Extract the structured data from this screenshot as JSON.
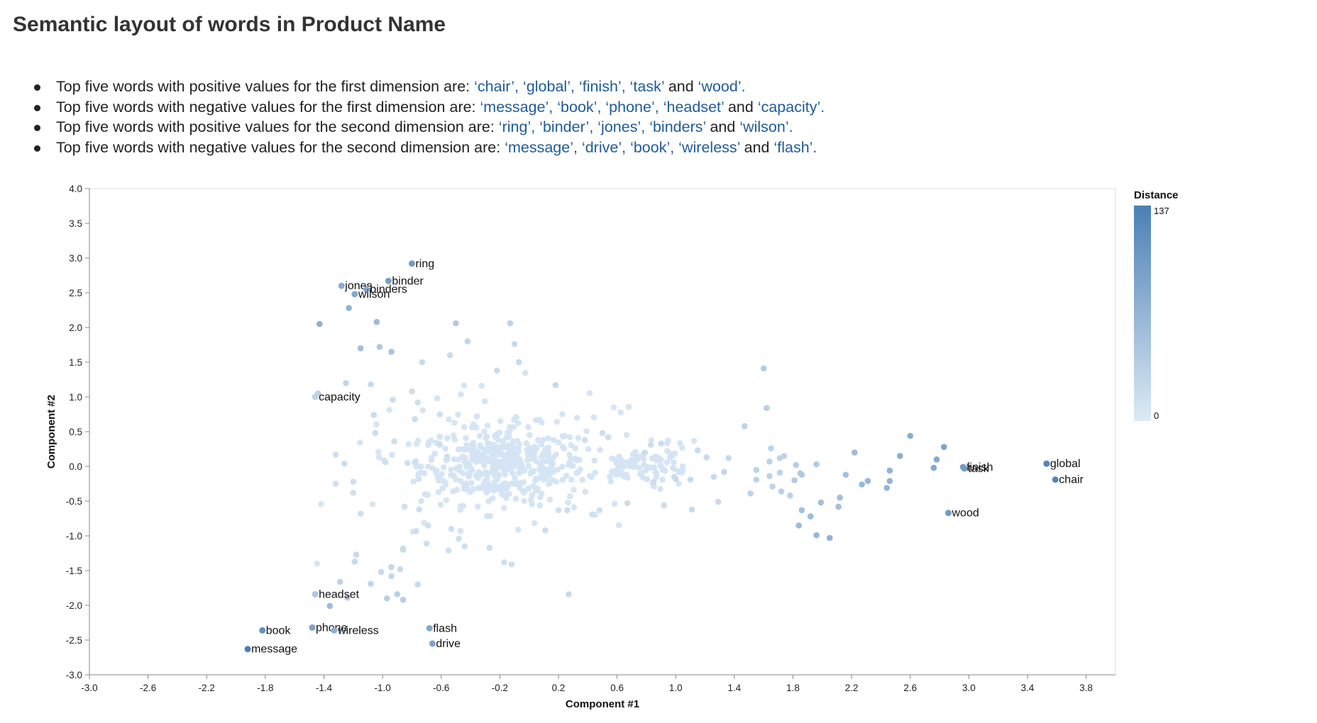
{
  "page": {
    "title": "Semantic layout of words in Product Name"
  },
  "summary": [
    {
      "prefix": "Top five words with positive values for the first dimension are: ",
      "words": [
        "chair",
        "global",
        "finish",
        "task",
        "wood"
      ]
    },
    {
      "prefix": "Top five words with negative values for the first dimension are: ",
      "words": [
        "message",
        "book",
        "phone",
        "headset",
        "capacity"
      ]
    },
    {
      "prefix": "Top five words with positive values for the second dimension are: ",
      "words": [
        "ring",
        "binder",
        "jones",
        "binders",
        "wilson"
      ]
    },
    {
      "prefix": "Top five words with negative values for the second dimension are: ",
      "words": [
        "message",
        "drive",
        "book",
        "wireless",
        "flash"
      ]
    }
  ],
  "summary_conjunction": "and",
  "chart_data": {
    "type": "scatter",
    "xlabel": "Component #1",
    "ylabel": "Component #2",
    "xlim": [
      -3.0,
      4.0
    ],
    "ylim": [
      -3.0,
      4.0
    ],
    "x_ticks": [
      -3.0,
      -2.6,
      -2.2,
      -1.8,
      -1.4,
      -1.0,
      -0.6,
      -0.2,
      0.2,
      0.6,
      1.0,
      1.4,
      1.8,
      2.2,
      2.6,
      3.0,
      3.4,
      3.8
    ],
    "y_ticks": [
      4.0,
      3.5,
      3.0,
      2.5,
      2.0,
      1.5,
      1.0,
      0.5,
      0.0,
      -0.5,
      -1.0,
      -1.5,
      -2.0,
      -2.5,
      -3.0
    ],
    "tick_labels_x": [
      "-3.0",
      "-2.6",
      "-2.2",
      "-1.8",
      "-1.4",
      "-1.0",
      "-0.6",
      "-0.2",
      "0.2",
      "0.6",
      "1.0",
      "1.4",
      "1.8",
      "2.2",
      "2.6",
      "3.0",
      "3.4",
      "3.8"
    ],
    "tick_labels_y": [
      "4.0",
      "3.5",
      "3.0",
      "2.5",
      "2.0",
      "1.5",
      "1.0",
      "0.5",
      "0.0",
      "-0.5",
      "-1.0",
      "-1.5",
      "-2.0",
      "-2.5",
      "-3.0"
    ],
    "grid": false,
    "legend": {
      "title": "Distance",
      "min": 0,
      "max": 137,
      "placement": "right",
      "color_low": "#dceaf6",
      "color_high": "#4c7fb5"
    },
    "labeled_points": [
      {
        "label": "ring",
        "x": -0.8,
        "y": 2.92,
        "distance": 100
      },
      {
        "label": "binder",
        "x": -0.96,
        "y": 2.67,
        "distance": 95
      },
      {
        "label": "jones",
        "x": -1.28,
        "y": 2.6,
        "distance": 80
      },
      {
        "label": "binders",
        "x": -1.11,
        "y": 2.55,
        "distance": 85
      },
      {
        "label": "wilson",
        "x": -1.19,
        "y": 2.48,
        "distance": 85
      },
      {
        "label": "capacity",
        "x": -1.46,
        "y": 1.0,
        "distance": 30
      },
      {
        "label": "headset",
        "x": -1.46,
        "y": -1.84,
        "distance": 45
      },
      {
        "label": "book",
        "x": -1.82,
        "y": -2.36,
        "distance": 115
      },
      {
        "label": "phone",
        "x": -1.48,
        "y": -2.32,
        "distance": 90
      },
      {
        "label": "wireless",
        "x": -1.33,
        "y": -2.36,
        "distance": 75
      },
      {
        "label": "message",
        "x": -1.92,
        "y": -2.63,
        "distance": 137
      },
      {
        "label": "flash",
        "x": -0.68,
        "y": -2.33,
        "distance": 85
      },
      {
        "label": "drive",
        "x": -0.66,
        "y": -2.55,
        "distance": 90
      },
      {
        "label": "finish",
        "x": 2.96,
        "y": -0.01,
        "distance": 100
      },
      {
        "label": "task",
        "x": 2.97,
        "y": -0.03,
        "distance": 100
      },
      {
        "label": "global",
        "x": 3.53,
        "y": 0.04,
        "distance": 130
      },
      {
        "label": "chair",
        "x": 3.59,
        "y": -0.19,
        "distance": 130
      },
      {
        "label": "wood",
        "x": 2.86,
        "y": -0.67,
        "distance": 100
      }
    ],
    "points": [
      [
        -1.43,
        2.05,
        75
      ],
      [
        -1.23,
        2.28,
        70
      ],
      [
        -1.04,
        2.08,
        60
      ],
      [
        -1.15,
        1.7,
        55
      ],
      [
        -1.02,
        1.72,
        45
      ],
      [
        -0.94,
        1.65,
        50
      ],
      [
        -0.5,
        2.06,
        40
      ],
      [
        -0.13,
        2.06,
        30
      ],
      [
        -0.42,
        1.8,
        25
      ],
      [
        -0.1,
        1.76,
        20
      ],
      [
        -0.73,
        1.5,
        20
      ],
      [
        -0.54,
        1.6,
        18
      ],
      [
        -0.07,
        1.5,
        20
      ],
      [
        0.18,
        1.17,
        20
      ],
      [
        -0.22,
        1.38,
        18
      ],
      [
        -1.25,
        1.2,
        25
      ],
      [
        -1.08,
        1.18,
        20
      ],
      [
        -1.06,
        0.74,
        18
      ],
      [
        -1.05,
        0.48,
        15
      ],
      [
        -0.93,
        0.96,
        15
      ],
      [
        -1.44,
        1.05,
        30
      ],
      [
        -0.8,
        1.08,
        15
      ],
      [
        -0.76,
        0.92,
        14
      ],
      [
        -0.61,
        0.75,
        14
      ],
      [
        -0.78,
        0.68,
        14
      ],
      [
        -0.61,
        0.31,
        14
      ],
      [
        -0.56,
        0.14,
        14
      ],
      [
        -0.92,
        0.36,
        14
      ],
      [
        -0.98,
        0.06,
        14
      ],
      [
        -0.83,
        0.05,
        14
      ],
      [
        -0.78,
        0.06,
        14
      ],
      [
        -1.32,
        0.17,
        14
      ],
      [
        -1.26,
        0.04,
        14
      ],
      [
        -1.32,
        -0.25,
        14
      ],
      [
        -1.2,
        -0.22,
        14
      ],
      [
        -1.2,
        -0.38,
        14
      ],
      [
        -1.15,
        -0.68,
        14
      ],
      [
        -0.85,
        -0.58,
        14
      ],
      [
        -0.75,
        -0.62,
        14
      ],
      [
        -0.69,
        -0.85,
        14
      ],
      [
        -0.77,
        -0.93,
        14
      ],
      [
        -0.86,
        -1.18,
        14
      ],
      [
        -0.7,
        -1.11,
        14
      ],
      [
        -0.48,
        -1.04,
        14
      ],
      [
        -0.44,
        -1.15,
        14
      ],
      [
        -0.55,
        -1.21,
        14
      ],
      [
        -0.53,
        -0.9,
        14
      ],
      [
        -1.18,
        -1.27,
        20
      ],
      [
        -1.19,
        -1.37,
        20
      ],
      [
        -1.08,
        -1.69,
        25
      ],
      [
        -0.94,
        -1.58,
        25
      ],
      [
        -0.94,
        -1.45,
        25
      ],
      [
        -0.88,
        -1.48,
        20
      ],
      [
        -0.86,
        -1.2,
        18
      ],
      [
        -0.76,
        -1.7,
        20
      ],
      [
        -1.01,
        -1.52,
        20
      ],
      [
        -1.29,
        -1.66,
        30
      ],
      [
        -1.36,
        -2.01,
        60
      ],
      [
        -1.24,
        -1.89,
        40
      ],
      [
        -0.97,
        -1.9,
        35
      ],
      [
        -0.9,
        -1.84,
        35
      ],
      [
        -0.86,
        -1.92,
        35
      ],
      [
        -0.17,
        -1.38,
        14
      ],
      [
        -0.12,
        -1.41,
        14
      ],
      [
        0.27,
        -1.84,
        20
      ],
      [
        0.2,
        -0.63,
        14
      ],
      [
        0.26,
        -0.63,
        14
      ],
      [
        0.48,
        -0.63,
        14
      ],
      [
        0.11,
        -0.92,
        14
      ],
      [
        -0.27,
        -1.17,
        14
      ],
      [
        1.6,
        1.41,
        40
      ],
      [
        1.62,
        0.84,
        35
      ],
      [
        1.47,
        0.58,
        30
      ],
      [
        1.65,
        0.26,
        30
      ],
      [
        1.71,
        0.12,
        30
      ],
      [
        1.74,
        0.15,
        28
      ],
      [
        1.64,
        0.07,
        30
      ],
      [
        1.55,
        -0.05,
        30
      ],
      [
        1.55,
        -0.19,
        30
      ],
      [
        1.64,
        -0.14,
        30
      ],
      [
        1.71,
        -0.09,
        30
      ],
      [
        1.51,
        -0.39,
        30
      ],
      [
        1.66,
        -0.29,
        30
      ],
      [
        1.72,
        -0.36,
        32
      ],
      [
        1.78,
        -0.42,
        32
      ],
      [
        1.82,
        0.02,
        35
      ],
      [
        1.85,
        -0.1,
        40
      ],
      [
        1.86,
        -0.12,
        45
      ],
      [
        1.96,
        0.03,
        40
      ],
      [
        1.81,
        -0.2,
        40
      ],
      [
        1.86,
        -0.63,
        55
      ],
      [
        1.92,
        -0.72,
        60
      ],
      [
        1.84,
        -0.85,
        60
      ],
      [
        1.96,
        -0.99,
        65
      ],
      [
        2.05,
        -1.03,
        70
      ],
      [
        1.99,
        -0.52,
        55
      ],
      [
        2.12,
        -0.45,
        55
      ],
      [
        2.11,
        -0.58,
        55
      ],
      [
        2.16,
        -0.12,
        55
      ],
      [
        2.22,
        0.2,
        60
      ],
      [
        2.27,
        -0.26,
        65
      ],
      [
        2.31,
        -0.21,
        65
      ],
      [
        2.44,
        -0.31,
        70
      ],
      [
        2.46,
        -0.21,
        70
      ],
      [
        2.46,
        -0.06,
        70
      ],
      [
        2.53,
        0.15,
        75
      ],
      [
        2.6,
        0.44,
        80
      ],
      [
        2.78,
        0.1,
        85
      ],
      [
        2.76,
        -0.02,
        85
      ],
      [
        2.83,
        0.28,
        90
      ],
      [
        1.26,
        -0.15,
        20
      ],
      [
        1.11,
        -0.62,
        20
      ],
      [
        1.29,
        -0.51,
        20
      ],
      [
        1.33,
        -0.08,
        25
      ],
      [
        1.36,
        0.12,
        22
      ],
      [
        1.21,
        0.13,
        20
      ],
      [
        1.1,
        -0.19,
        20
      ],
      [
        1.0,
        -0.18,
        20
      ],
      [
        0.92,
        -0.56,
        18
      ],
      [
        0.99,
        -0.15,
        18
      ],
      [
        0.67,
        -0.53,
        16
      ],
      [
        0.43,
        -0.69,
        14
      ],
      [
        0.85,
        -0.22,
        16
      ],
      [
        0.79,
        0.2,
        16
      ],
      [
        0.9,
        0.33,
        16
      ],
      [
        0.83,
        0.31,
        16
      ],
      [
        0.5,
        0.48,
        14
      ],
      [
        0.38,
        0.38,
        14
      ],
      [
        0.54,
        0.42,
        14
      ],
      [
        1.15,
        0.23,
        18
      ]
    ]
  }
}
